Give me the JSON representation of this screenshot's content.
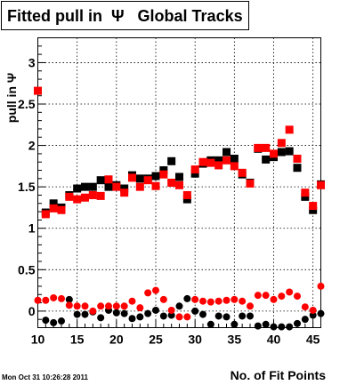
{
  "chart_data": {
    "type": "scatter",
    "title": "Fitted pull in  Ψ   Global Tracks",
    "xlabel": "No. of Fit Points",
    "ylabel": "pull in Ψ",
    "timestamp": "Mon Oct 31 10:26:28 2011",
    "xlim": [
      10,
      46
    ],
    "ylim": [
      -0.2,
      3.3
    ],
    "xticks": [
      10,
      15,
      20,
      25,
      30,
      35,
      40,
      45
    ],
    "yticks": [
      0,
      0.5,
      1,
      1.5,
      2,
      2.5,
      3
    ],
    "ytick_labels": [
      "0",
      "0.5",
      "1",
      "1.5",
      "2",
      "2.5",
      "3"
    ],
    "grid": true,
    "colors": {
      "black": "#000000",
      "red": "#ff0000"
    },
    "series": [
      {
        "style": "black-square",
        "x": [
          11,
          12,
          13,
          14,
          15,
          16,
          17,
          18,
          19,
          20,
          21,
          22,
          23,
          24,
          25,
          26,
          27,
          28,
          29,
          30,
          31,
          32,
          33,
          34,
          35,
          36,
          37,
          38,
          39,
          40,
          41,
          42,
          43,
          44,
          45,
          46
        ],
        "y": [
          1.19,
          1.3,
          1.25,
          1.4,
          1.48,
          1.5,
          1.5,
          1.58,
          1.5,
          1.52,
          1.48,
          1.64,
          1.6,
          1.6,
          1.63,
          1.7,
          1.81,
          1.62,
          1.35,
          1.66,
          1.78,
          1.82,
          1.82,
          1.92,
          1.84,
          1.65,
          1.55,
          1.96,
          1.83,
          1.86,
          1.92,
          1.93,
          1.73,
          1.38,
          1.22,
          1.53
        ]
      },
      {
        "style": "red-square",
        "x": [
          10,
          11,
          12,
          13,
          14,
          15,
          16,
          17,
          18,
          19,
          20,
          21,
          22,
          23,
          24,
          25,
          26,
          27,
          28,
          29,
          30,
          31,
          32,
          33,
          34,
          35,
          36,
          37,
          38,
          39,
          40,
          41,
          42,
          43,
          44,
          45,
          46
        ],
        "y": [
          2.66,
          1.17,
          1.24,
          1.22,
          1.38,
          1.35,
          1.37,
          1.4,
          1.39,
          1.59,
          1.5,
          1.43,
          1.61,
          1.5,
          1.58,
          1.51,
          1.65,
          1.55,
          1.52,
          1.4,
          1.71,
          1.8,
          1.79,
          1.76,
          1.82,
          1.75,
          1.67,
          1.54,
          1.97,
          1.97,
          1.9,
          2.03,
          2.19,
          1.84,
          1.43,
          1.27,
          1.52
        ]
      },
      {
        "style": "black-circle",
        "x": [
          11,
          12,
          13,
          14,
          15,
          16,
          17,
          18,
          19,
          20,
          21,
          22,
          23,
          24,
          25,
          26,
          27,
          28,
          29,
          30,
          31,
          32,
          33,
          34,
          35,
          36,
          37,
          38,
          39,
          40,
          41,
          42,
          43,
          44,
          45,
          46
        ],
        "y": [
          -0.11,
          -0.14,
          -0.12,
          0.14,
          -0.04,
          -0.04,
          -0.01,
          -0.08,
          0.01,
          -0.02,
          -0.03,
          -0.09,
          -0.07,
          -0.03,
          0.01,
          -0.06,
          -0.05,
          0.06,
          0.15,
          0.0,
          -0.04,
          -0.16,
          -0.06,
          -0.07,
          -0.16,
          -0.06,
          -0.06,
          -0.18,
          -0.16,
          -0.19,
          -0.19,
          -0.19,
          -0.15,
          -0.1,
          -0.05,
          -0.03
        ]
      },
      {
        "style": "red-circle",
        "x": [
          10,
          11,
          12,
          13,
          14,
          15,
          16,
          17,
          18,
          19,
          20,
          21,
          22,
          23,
          24,
          25,
          26,
          27,
          28,
          29,
          30,
          31,
          32,
          33,
          34,
          35,
          36,
          37,
          38,
          39,
          40,
          41,
          42,
          43,
          44,
          45,
          46
        ],
        "y": [
          0.13,
          0.13,
          0.16,
          0.15,
          0.07,
          0.06,
          0.06,
          0.0,
          0.06,
          0.06,
          0.06,
          0.06,
          0.12,
          0.04,
          0.22,
          0.25,
          0.14,
          0.01,
          -0.07,
          -0.07,
          0.14,
          0.12,
          0.11,
          0.12,
          0.13,
          0.14,
          0.12,
          0.06,
          0.19,
          0.19,
          0.14,
          0.18,
          0.23,
          0.18,
          0.05,
          0.01,
          0.3
        ]
      }
    ]
  }
}
